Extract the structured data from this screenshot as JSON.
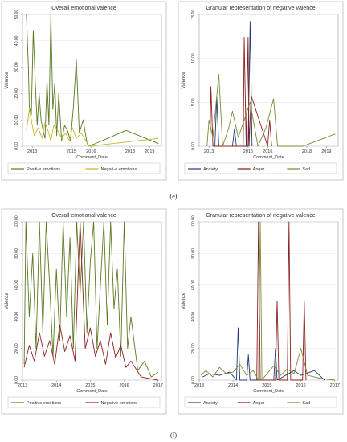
{
  "captions": [
    "(e)",
    "(f)"
  ],
  "chart_data": [
    {
      "type": "line",
      "title": "Overall emotional valence",
      "xlabel": "Comment_Date",
      "ylabel": "Valence",
      "x_ticks": [
        "2013",
        "2015",
        "2016",
        "2018",
        "2019"
      ],
      "y_ticks": [
        "0.00",
        "10.00",
        "20.00",
        "30.00",
        "40.00",
        "50.00"
      ],
      "ylim": [
        0,
        50
      ],
      "xlim": [
        2012.5,
        2019.6
      ],
      "legend": "bottom",
      "series": [
        {
          "name": "Positi-e emotions",
          "color": "#5b7a23",
          "x": [
            2012.7,
            2012.8,
            2012.85,
            2012.95,
            2013.05,
            2013.15,
            2013.25,
            2013.35,
            2013.45,
            2013.55,
            2013.65,
            2013.75,
            2013.85,
            2013.95,
            2014.05,
            2014.15,
            2014.25,
            2014.35,
            2014.5,
            2014.65,
            2014.8,
            2014.95,
            2015.1,
            2015.25,
            2015.4,
            2015.6,
            2015.8,
            2015.9,
            2017.8,
            2019.45
          ],
          "y": [
            50,
            30,
            15,
            12,
            44,
            25,
            8,
            20,
            10,
            6,
            3,
            25,
            8,
            50,
            14,
            24,
            4,
            20,
            2,
            8,
            6,
            2,
            15,
            33,
            5,
            10,
            1,
            0,
            6,
            1
          ]
        },
        {
          "name": "Negati-e emotions",
          "color": "#c7b52a",
          "x": [
            2012.7,
            2012.85,
            2013.0,
            2013.1,
            2013.3,
            2013.5,
            2013.65,
            2013.8,
            2013.95,
            2014.1,
            2014.3,
            2014.5,
            2014.7,
            2014.9,
            2015.05,
            2015.25,
            2015.5,
            2015.9,
            2019.45
          ],
          "y": [
            6,
            14,
            8,
            4,
            7,
            3,
            9,
            6,
            2,
            8,
            6,
            3,
            5,
            2,
            7,
            3,
            5,
            0,
            3
          ]
        }
      ]
    },
    {
      "type": "line",
      "title": "Granular representation of negative valence",
      "xlabel": "Comment_Date",
      "ylabel": "Valence",
      "x_ticks": [
        "2013",
        "2015",
        "2016",
        "2018",
        "2019"
      ],
      "y_ticks": [
        "0.00",
        "5.00",
        "10.00",
        "15.00"
      ],
      "ylim": [
        0,
        15
      ],
      "xlim": [
        2012.5,
        2019.6
      ],
      "legend": "bottom",
      "series": [
        {
          "name": "Anxiety",
          "color": "#1f3b73",
          "x": [
            2013.3,
            2013.4,
            2013.5,
            2014.2,
            2014.3,
            2014.4,
            2015.0,
            2015.1,
            2015.2
          ],
          "y": [
            0,
            5.6,
            0,
            0,
            2,
            0,
            0,
            14.2,
            0
          ]
        },
        {
          "name": "Anger",
          "color": "#8b1f1f",
          "x": [
            2013.05,
            2013.1,
            2013.2,
            2014.75,
            2014.8,
            2014.9,
            2015.0,
            2015.05,
            2015.15,
            2016.0,
            2016.1,
            2016.2
          ],
          "y": [
            0,
            6.8,
            0,
            0,
            12.4,
            0,
            12.4,
            0,
            5.8,
            0,
            3,
            0
          ]
        },
        {
          "name": "Sad",
          "color": "#7b8a35",
          "x": [
            2012.9,
            2013.0,
            2013.2,
            2013.5,
            2013.7,
            2014.0,
            2014.2,
            2014.5,
            2015.1,
            2015.5,
            2015.9,
            2016.3,
            2016.5,
            2017.8,
            2019.45
          ],
          "y": [
            0,
            3,
            1,
            8.2,
            0,
            2,
            4,
            1,
            5,
            0,
            2,
            5.4,
            0,
            0,
            1.4
          ]
        }
      ]
    },
    {
      "type": "line",
      "title": "Overall emotional valence",
      "xlabel": "Comment_Date",
      "ylabel": "Valence",
      "x_ticks": [
        "2013",
        "2014",
        "2015",
        "2016",
        "2017"
      ],
      "y_ticks": [
        "0.00",
        "20.00",
        "40.00",
        "60.00",
        "80.00",
        "100.00"
      ],
      "ylim": [
        0,
        100
      ],
      "xlim": [
        2013,
        2017.1
      ],
      "legend": "bottom",
      "series": [
        {
          "name": "Positive emotions",
          "color": "#5b7a23",
          "x": [
            2013.05,
            2013.1,
            2013.2,
            2013.3,
            2013.4,
            2013.5,
            2013.6,
            2013.7,
            2013.8,
            2013.9,
            2014.0,
            2014.1,
            2014.2,
            2014.3,
            2014.4,
            2014.5,
            2014.6,
            2014.7,
            2014.8,
            2014.9,
            2015.0,
            2015.1,
            2015.2,
            2015.3,
            2015.4,
            2015.5,
            2015.6,
            2015.7,
            2015.8,
            2015.9,
            2016.0,
            2016.1,
            2016.2,
            2016.4,
            2016.6,
            2016.8,
            2017.0
          ],
          "y": [
            10,
            100,
            40,
            80,
            20,
            100,
            30,
            100,
            60,
            15,
            70,
            25,
            100,
            40,
            90,
            20,
            100,
            55,
            100,
            30,
            75,
            100,
            20,
            60,
            100,
            35,
            100,
            45,
            70,
            15,
            100,
            20,
            40,
            6,
            12,
            2,
            5
          ]
        },
        {
          "name": "Negative emotions",
          "color": "#8b1f1f",
          "x": [
            2013.05,
            2013.2,
            2013.35,
            2013.5,
            2013.65,
            2013.8,
            2013.95,
            2014.1,
            2014.25,
            2014.4,
            2014.55,
            2014.7,
            2014.85,
            2015.0,
            2015.15,
            2015.3,
            2015.45,
            2015.6,
            2015.75,
            2015.9,
            2016.05,
            2016.2,
            2016.5,
            2017.0
          ],
          "y": [
            8,
            22,
            12,
            30,
            15,
            25,
            10,
            35,
            18,
            28,
            12,
            100,
            20,
            33,
            15,
            25,
            10,
            30,
            14,
            22,
            8,
            12,
            2,
            0
          ]
        }
      ]
    },
    {
      "type": "line",
      "title": "Granular representation of negative valence",
      "xlabel": "Comment_Date",
      "ylabel": "Valence",
      "x_ticks": [
        "2013",
        "2014",
        "2015",
        "2016",
        "2017"
      ],
      "y_ticks": [
        "0.00",
        "20.00",
        "40.00",
        "60.00",
        "80.00",
        "100.00"
      ],
      "ylim": [
        0,
        100
      ],
      "xlim": [
        2013,
        2017.1
      ],
      "legend": "bottom",
      "series": [
        {
          "name": "Anxiety",
          "color": "#1f3b73",
          "x": [
            2013.1,
            2013.3,
            2013.6,
            2013.9,
            2014.1,
            2014.15,
            2014.2,
            2014.4,
            2014.45,
            2014.5,
            2015.2,
            2015.25,
            2015.3,
            2015.8,
            2016.0,
            2016.4,
            2016.7
          ],
          "y": [
            2,
            4,
            3,
            5,
            0,
            33,
            0,
            0,
            16,
            0,
            0,
            20,
            0,
            6,
            3,
            6,
            0
          ]
        },
        {
          "name": "Anger",
          "color": "#8b1f1f",
          "x": [
            2014.7,
            2014.75,
            2014.8,
            2015.25,
            2015.3,
            2015.35,
            2015.6,
            2015.65,
            2015.7,
            2016.05,
            2016.1,
            2016.15
          ],
          "y": [
            0,
            100,
            0,
            0,
            50,
            0,
            0,
            100,
            0,
            0,
            50,
            0
          ]
        },
        {
          "name": "Sad",
          "color": "#7b8a35",
          "x": [
            2013.05,
            2013.2,
            2013.4,
            2013.6,
            2013.8,
            2014.0,
            2014.2,
            2014.4,
            2014.6,
            2014.75,
            2014.8,
            2014.85,
            2015.0,
            2015.2,
            2015.4,
            2015.6,
            2015.8,
            2016.0,
            2016.2,
            2016.4,
            2016.6,
            2017.0
          ],
          "y": [
            3,
            6,
            2,
            8,
            4,
            5,
            10,
            3,
            6,
            0,
            100,
            0,
            4,
            9,
            3,
            7,
            4,
            20,
            3,
            2,
            1,
            0
          ]
        }
      ]
    }
  ]
}
